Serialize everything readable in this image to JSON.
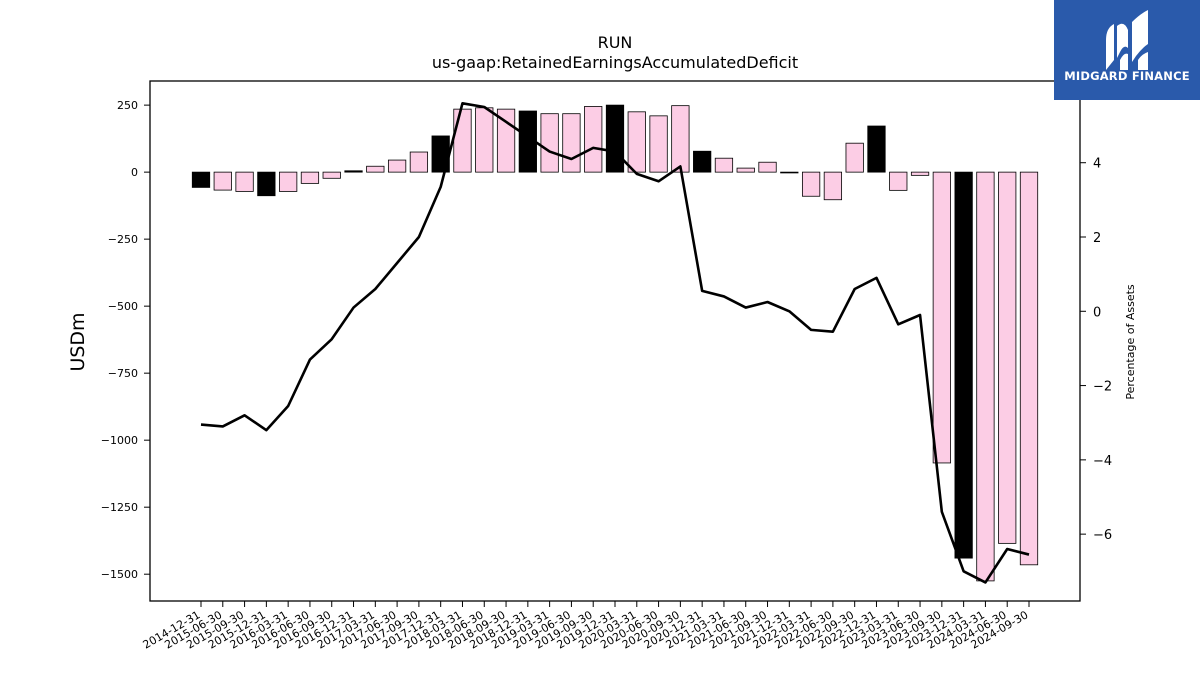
{
  "brand": {
    "name": "MIDGARD FINANCE",
    "bg_color": "#2a5aab"
  },
  "chart_data": {
    "type": "bar",
    "title": "RUN",
    "subtitle": "us-gaap:RetainedEarningsAccumulatedDeficit",
    "ylabel": "USDm",
    "y2label": "Percentage of Assets",
    "ylim": [
      -1600,
      340
    ],
    "y2lim": [
      -7.8,
      6.2
    ],
    "yticks": [
      250,
      0,
      -250,
      -500,
      -750,
      -1000,
      -1250,
      -1500
    ],
    "y2ticks": [
      4,
      2,
      0,
      -2,
      -4,
      -6
    ],
    "grid": false,
    "legend": "none",
    "colors": {
      "q4_bar": "#000000",
      "other_bar": "#fccde5",
      "line": "#000000"
    },
    "categories": [
      "2014-12-31",
      "2015-06-30",
      "2015-09-30",
      "2015-12-31",
      "2016-03-31",
      "2016-06-30",
      "2016-09-30",
      "2016-12-31",
      "2017-03-31",
      "2017-06-30",
      "2017-09-30",
      "2017-12-31",
      "2018-03-31",
      "2018-06-30",
      "2018-09-30",
      "2018-12-31",
      "2019-03-31",
      "2019-06-30",
      "2019-09-30",
      "2019-12-31",
      "2020-03-31",
      "2020-06-30",
      "2020-09-30",
      "2020-12-31",
      "2021-03-31",
      "2021-06-30",
      "2021-09-30",
      "2021-12-31",
      "2022-03-31",
      "2022-06-30",
      "2022-09-30",
      "2022-12-31",
      "2023-03-31",
      "2023-06-30",
      "2023-09-30",
      "2023-12-31",
      "2024-03-31",
      "2024-06-30",
      "2024-09-30"
    ],
    "series": [
      {
        "type": "bar",
        "values": [
          -57,
          -67,
          -72,
          -88,
          -72,
          -42,
          -23,
          5,
          22,
          45,
          75,
          135,
          235,
          240,
          235,
          228,
          218,
          218,
          245,
          250,
          225,
          210,
          248,
          78,
          52,
          15,
          37,
          -3,
          -90,
          -103,
          108,
          172,
          -68,
          -12,
          -1085,
          -1440,
          -1525,
          -1385,
          -1465
        ]
      },
      {
        "type": "line",
        "axis": "right",
        "values": [
          -3.05,
          -3.1,
          -2.8,
          -3.2,
          -2.55,
          -1.3,
          -0.75,
          0.1,
          0.6,
          1.3,
          2.0,
          3.35,
          5.6,
          5.5,
          5.1,
          4.7,
          4.3,
          4.1,
          4.4,
          4.3,
          3.7,
          3.5,
          3.9,
          0.55,
          0.4,
          0.1,
          0.25,
          0.0,
          -0.5,
          -0.55,
          0.6,
          0.9,
          -0.35,
          -0.1,
          -5.4,
          -7.0,
          -7.3,
          -6.4,
          -6.55
        ]
      }
    ]
  }
}
